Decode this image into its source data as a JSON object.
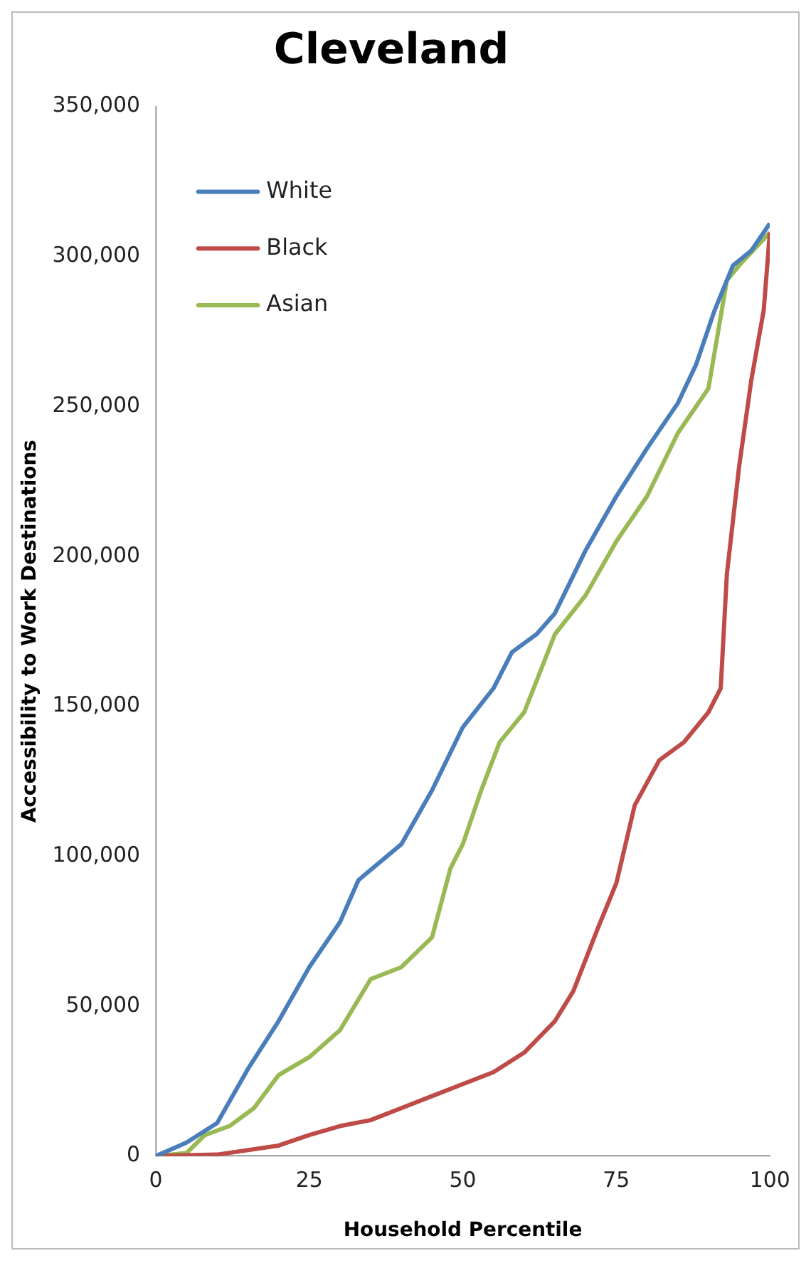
{
  "chart_data": {
    "type": "line",
    "title": "Cleveland",
    "xlabel": "Household Percentile",
    "ylabel": "Accessibility to Work Destinations",
    "xlim": [
      0,
      100
    ],
    "xticks": [
      0,
      25,
      50,
      75,
      100
    ],
    "ylim": [
      0,
      350000
    ],
    "yticks": [
      {
        "value": 0,
        "label": "0"
      },
      {
        "value": 50000,
        "label": "50,000"
      },
      {
        "value": 100000,
        "label": "100,000"
      },
      {
        "value": 150000,
        "label": "150,000"
      },
      {
        "value": 200000,
        "label": "200,000"
      },
      {
        "value": 250000,
        "label": "250,000"
      },
      {
        "value": 300000,
        "label": "300,000"
      },
      {
        "value": 350000,
        "label": "350,000"
      }
    ],
    "grid": false,
    "legend": "top left",
    "marker": "none",
    "line_style": "solid",
    "series": [
      {
        "name": "White",
        "color": "#4a7ebb",
        "x": [
          0,
          5,
          10,
          15,
          20,
          25,
          30,
          33,
          40,
          45,
          50,
          55,
          58,
          62,
          65,
          70,
          75,
          80,
          85,
          88,
          91,
          94,
          97,
          100
        ],
        "values": [
          0,
          4500,
          11000,
          29000,
          45000,
          63000,
          78000,
          92000,
          104000,
          122000,
          143000,
          156000,
          168000,
          174000,
          181000,
          202000,
          220000,
          236000,
          251000,
          264000,
          282000,
          297000,
          302000,
          311000
        ]
      },
      {
        "name": "Black",
        "color": "#be4b48",
        "x": [
          0,
          10,
          20,
          25,
          30,
          35,
          40,
          45,
          50,
          55,
          60,
          65,
          68,
          72,
          75,
          78,
          82,
          86,
          90,
          92,
          93,
          95,
          97,
          99,
          100
        ],
        "values": [
          0,
          500,
          3500,
          7000,
          10000,
          12000,
          16000,
          20000,
          24000,
          28000,
          34500,
          45000,
          55000,
          76000,
          91000,
          117000,
          132000,
          138000,
          148000,
          156000,
          194000,
          230000,
          259000,
          282000,
          308000
        ]
      },
      {
        "name": "Asian",
        "color": "#98b954",
        "x": [
          0,
          5,
          8,
          12,
          16,
          20,
          25,
          30,
          35,
          40,
          45,
          48,
          50,
          53,
          56,
          60,
          65,
          70,
          75,
          80,
          85,
          90,
          93,
          95,
          100
        ],
        "values": [
          0,
          1000,
          7000,
          10000,
          16000,
          27000,
          33000,
          42000,
          59000,
          63000,
          73000,
          96000,
          104000,
          122000,
          138000,
          148000,
          174000,
          187000,
          205000,
          220000,
          241000,
          256000,
          292000,
          297000,
          308000
        ]
      }
    ]
  }
}
